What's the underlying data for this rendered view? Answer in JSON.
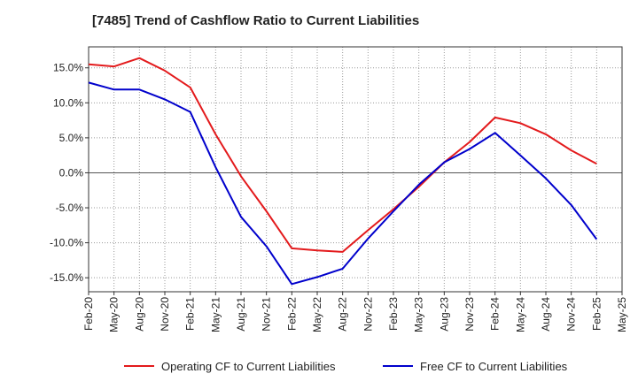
{
  "chart_data": {
    "type": "line",
    "title": "[7485]  Trend of Cashflow Ratio to Current Liabilities",
    "xlabel": "",
    "ylabel": "",
    "categories": [
      "Feb-20",
      "May-20",
      "Aug-20",
      "Nov-20",
      "Feb-21",
      "May-21",
      "Aug-21",
      "Nov-21",
      "Feb-22",
      "May-22",
      "Aug-22",
      "Nov-22",
      "Feb-23",
      "May-23",
      "Aug-23",
      "Nov-23",
      "Feb-24",
      "May-24",
      "Aug-24",
      "Nov-24",
      "Feb-25",
      "May-25"
    ],
    "ylim": [
      -17,
      18
    ],
    "yticks": [
      15,
      10,
      5,
      0,
      -5,
      -10,
      -15
    ],
    "ytick_labels": [
      "15.0%",
      "10.0%",
      "5.0%",
      "0.0%",
      "-5.0%",
      "-10.0%",
      "-15.0%"
    ],
    "grid": true,
    "legend_position": "bottom",
    "series": [
      {
        "name": "Operating CF to Current Liabilities",
        "color": "#e31a1c",
        "values": [
          15.5,
          15.2,
          16.4,
          14.6,
          12.2,
          5.5,
          -0.5,
          -5.5,
          -10.8,
          -11.1,
          -11.3,
          -8.2,
          -5.2,
          -2.0,
          1.5,
          4.4,
          7.9,
          7.1,
          5.5,
          3.2,
          1.3,
          null
        ]
      },
      {
        "name": "Free CF to Current Liabilities",
        "color": "#0000cc",
        "values": [
          12.9,
          11.9,
          11.9,
          10.5,
          8.7,
          0.8,
          -6.3,
          -10.5,
          -15.9,
          -14.9,
          -13.7,
          -9.4,
          -5.5,
          -1.7,
          1.5,
          3.4,
          5.7,
          2.5,
          -0.8,
          -4.6,
          -9.5,
          null
        ]
      }
    ]
  }
}
